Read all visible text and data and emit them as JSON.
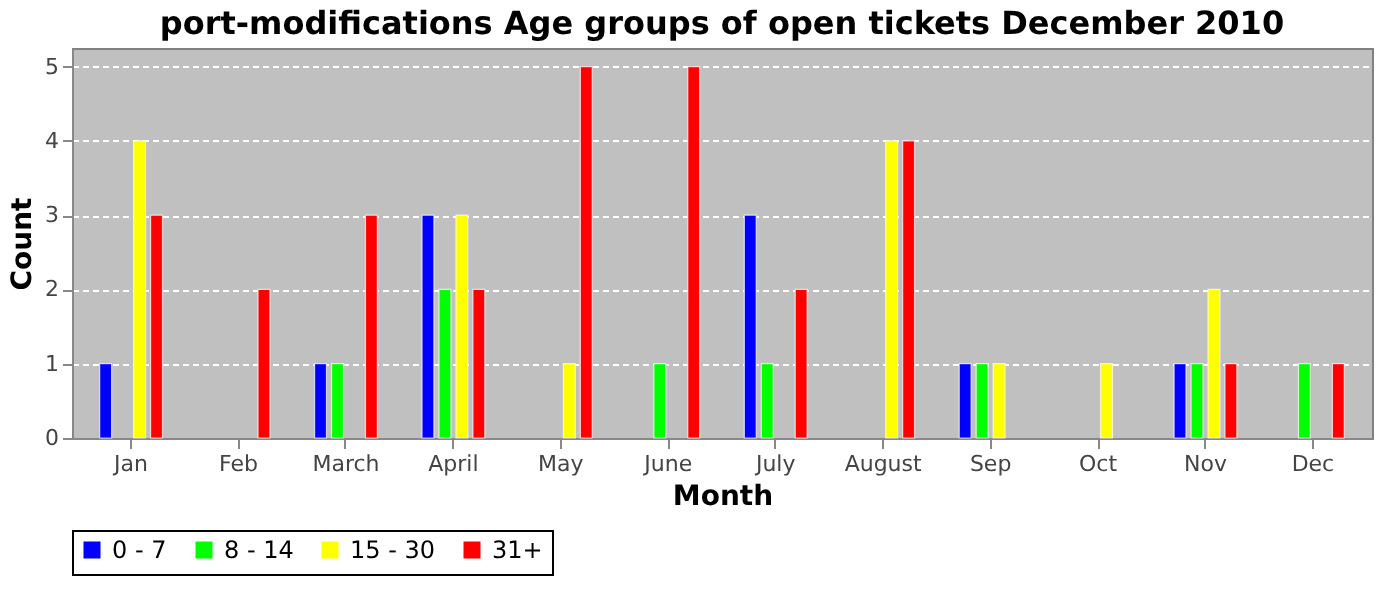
{
  "chart_data": {
    "type": "bar",
    "title": "port-modifications Age groups of open tickets December 2010",
    "xlabel": "Month",
    "ylabel": "Count",
    "categories": [
      "Jan",
      "Feb",
      "March",
      "April",
      "May",
      "June",
      "July",
      "August",
      "Sep",
      "Oct",
      "Nov",
      "Dec"
    ],
    "series": [
      {
        "name": "0 - 7",
        "color": "#0000ff",
        "values": [
          1,
          null,
          1,
          3,
          null,
          null,
          3,
          null,
          1,
          null,
          1,
          null
        ]
      },
      {
        "name": "8 - 14",
        "color": "#00ff00",
        "values": [
          null,
          null,
          1,
          2,
          null,
          1,
          1,
          null,
          1,
          null,
          1,
          1
        ]
      },
      {
        "name": "15 - 30",
        "color": "#ffff00",
        "values": [
          4,
          null,
          null,
          3,
          1,
          null,
          null,
          4,
          1,
          1,
          2,
          null
        ]
      },
      {
        "name": "31+",
        "color": "#ff0000",
        "values": [
          3,
          2,
          3,
          2,
          5,
          5,
          2,
          4,
          null,
          null,
          1,
          1
        ]
      }
    ],
    "ylim": [
      0,
      5.25
    ],
    "yticks": [
      0,
      1,
      2,
      3,
      4,
      5
    ],
    "grid": "y",
    "legend": "bottom"
  }
}
